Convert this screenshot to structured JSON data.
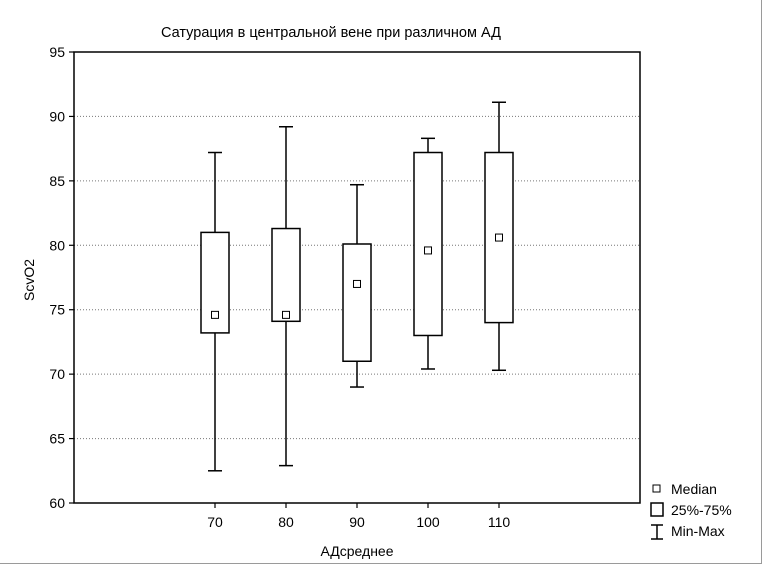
{
  "chart_data": {
    "type": "boxplot",
    "title": "Сатурация в центральной вене при различном АД",
    "xlabel": "АДсреднее",
    "ylabel": "ScvO2",
    "ylim": [
      60,
      95
    ],
    "yticks": [
      60,
      65,
      70,
      75,
      80,
      85,
      90,
      95
    ],
    "grid": true,
    "categories": [
      "70",
      "80",
      "90",
      "100",
      "110"
    ],
    "series": [
      {
        "category": "70",
        "min": 62.5,
        "q1": 73.2,
        "median": 74.6,
        "q3": 81.0,
        "max": 87.2
      },
      {
        "category": "80",
        "min": 62.9,
        "q1": 74.1,
        "median": 74.6,
        "q3": 81.3,
        "max": 89.2
      },
      {
        "category": "90",
        "min": 69.0,
        "q1": 71.0,
        "median": 77.0,
        "q3": 80.1,
        "max": 84.7
      },
      {
        "category": "100",
        "min": 70.4,
        "q1": 73.0,
        "median": 79.6,
        "q3": 87.2,
        "max": 88.3
      },
      {
        "category": "110",
        "min": 70.3,
        "q1": 74.0,
        "median": 80.6,
        "q3": 87.2,
        "max": 91.1
      }
    ],
    "legend": {
      "position": "bottom-right",
      "items": [
        "Median",
        "25%-75%",
        "Min-Max"
      ]
    }
  }
}
